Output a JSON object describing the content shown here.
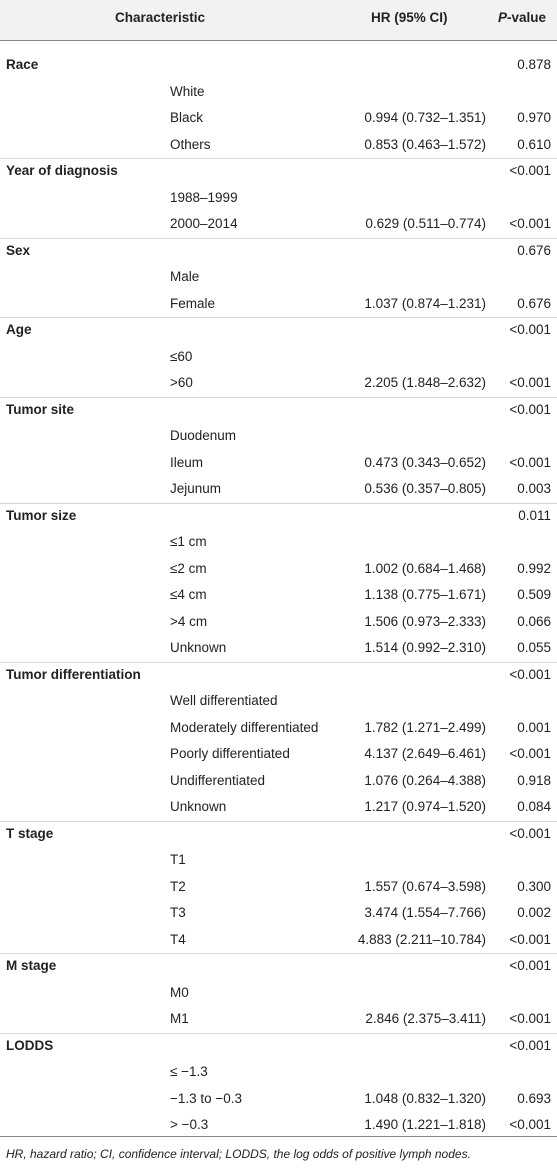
{
  "header": {
    "characteristic": "Characteristic",
    "hr": "HR (95% CI)",
    "p_italic": "P",
    "p_rest": "-value"
  },
  "groups": [
    {
      "name": "Race",
      "p": "0.878",
      "rows": [
        {
          "label": "White"
        },
        {
          "label": "Black",
          "hr": "0.994 (0.732–1.351)",
          "p": "0.970"
        },
        {
          "label": "Others",
          "hr": "0.853 (0.463–1.572)",
          "p": "0.610"
        }
      ]
    },
    {
      "name": "Year of diagnosis",
      "p": "<0.001",
      "rows": [
        {
          "label": "1988–1999"
        },
        {
          "label": "2000–2014",
          "hr": "0.629 (0.511–0.774)",
          "p": "<0.001"
        }
      ]
    },
    {
      "name": "Sex",
      "p": "0.676",
      "rows": [
        {
          "label": "Male"
        },
        {
          "label": "Female",
          "hr": "1.037 (0.874–1.231)",
          "p": "0.676"
        }
      ]
    },
    {
      "name": "Age",
      "p": "<0.001",
      "rows": [
        {
          "label": "≤60"
        },
        {
          "label": ">60",
          "hr": "2.205 (1.848–2.632)",
          "p": "<0.001"
        }
      ]
    },
    {
      "name": "Tumor site",
      "p": "<0.001",
      "rows": [
        {
          "label": "Duodenum"
        },
        {
          "label": "Ileum",
          "hr": "0.473 (0.343–0.652)",
          "p": "<0.001"
        },
        {
          "label": "Jejunum",
          "hr": "0.536 (0.357–0.805)",
          "p": "0.003"
        }
      ]
    },
    {
      "name": "Tumor size",
      "p": "0.011",
      "rows": [
        {
          "label": "≤1 cm"
        },
        {
          "label": "≤2 cm",
          "hr": "1.002 (0.684–1.468)",
          "p": "0.992"
        },
        {
          "label": "≤4 cm",
          "hr": "1.138 (0.775–1.671)",
          "p": "0.509"
        },
        {
          "label": ">4 cm",
          "hr": "1.506 (0.973–2.333)",
          "p": "0.066"
        },
        {
          "label": "Unknown",
          "hr": "1.514 (0.992–2.310)",
          "p": "0.055"
        }
      ]
    },
    {
      "name": "Tumor differentiation",
      "p": "<0.001",
      "rows": [
        {
          "label": "Well differentiated"
        },
        {
          "label": "Moderately differentiated",
          "hr": "1.782 (1.271–2.499)",
          "p": "0.001"
        },
        {
          "label": "Poorly differentiated",
          "hr": "4.137 (2.649–6.461)",
          "p": "<0.001"
        },
        {
          "label": "Undifferentiated",
          "hr": "1.076 (0.264–4.388)",
          "p": "0.918"
        },
        {
          "label": "Unknown",
          "hr": "1.217 (0.974–1.520)",
          "p": "0.084"
        }
      ]
    },
    {
      "name": "T stage",
      "p": "<0.001",
      "rows": [
        {
          "label": "T1"
        },
        {
          "label": "T2",
          "hr": "1.557 (0.674–3.598)",
          "p": "0.300"
        },
        {
          "label": "T3",
          "hr": "3.474 (1.554–7.766)",
          "p": "0.002"
        },
        {
          "label": "T4",
          "hr": "4.883 (2.211–10.784)",
          "p": "<0.001"
        }
      ]
    },
    {
      "name": "M stage",
      "p": "<0.001",
      "rows": [
        {
          "label": "M0"
        },
        {
          "label": "M1",
          "hr": "2.846 (2.375–3.411)",
          "p": "<0.001"
        }
      ]
    },
    {
      "name": "LODDS",
      "p": "<0.001",
      "rows": [
        {
          "label": "≤ −1.3"
        },
        {
          "label": "−1.3 to −0.3",
          "hr": "1.048 (0.832–1.320)",
          "p": "0.693"
        },
        {
          "label": "> −0.3",
          "hr": "1.490 (1.221–1.818)",
          "p": "<0.001"
        }
      ]
    }
  ],
  "footnote": "HR, hazard ratio; CI, confidence interval; LODDS, the log odds of positive lymph nodes."
}
